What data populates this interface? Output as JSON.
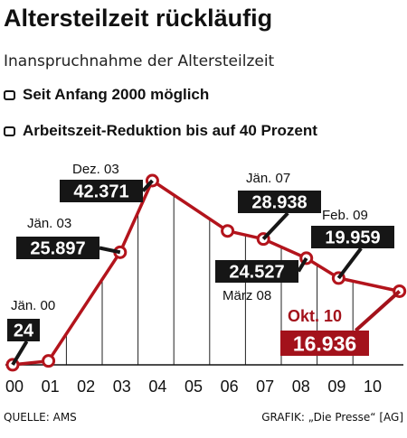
{
  "header": {
    "title": "Altersteilzeit rückläufig",
    "subtitle": "Inanspruchnahme der Altersteilzeit",
    "notes": [
      "Seit Anfang 2000 möglich",
      "Arbeitszeit-Reduktion bis auf 40 Prozent"
    ]
  },
  "footer": {
    "source": "QUELLE: AMS",
    "credit": "GRAFIK: „Die Presse“ [AG]"
  },
  "colors": {
    "line": "#b3141c",
    "label_bg": "#161616",
    "label_accent": "#a3121b",
    "grid": "#222222"
  },
  "chart_data": {
    "type": "line",
    "title": "Altersteilzeit rückläufig",
    "subtitle": "Inanspruchnahme der Altersteilzeit",
    "xlabel": "",
    "ylabel": "",
    "categories": [
      "00",
      "01",
      "02",
      "03",
      "04",
      "05",
      "06",
      "07",
      "08",
      "09",
      "10"
    ],
    "grid": "vertical",
    "series": [
      {
        "points": [
          {
            "x": 2000.0,
            "y": 24
          },
          {
            "x": 2001.0,
            "y": 900
          },
          {
            "x": 2003.0,
            "y": 25897
          },
          {
            "x": 2003.9,
            "y": 42371
          },
          {
            "x": 2006.0,
            "y": 30800
          },
          {
            "x": 2007.0,
            "y": 28938
          },
          {
            "x": 2008.2,
            "y": 24527
          },
          {
            "x": 2009.1,
            "y": 19959
          },
          {
            "x": 2010.8,
            "y": 16936
          }
        ]
      }
    ],
    "annotations": [
      {
        "date": "Jän. 00",
        "value": "24",
        "point": 0,
        "highlight": false
      },
      {
        "date": "Jän. 03",
        "value": "25.897",
        "point": 2,
        "highlight": false
      },
      {
        "date": "Dez. 03",
        "value": "42.371",
        "point": 3,
        "highlight": false
      },
      {
        "date": "Jän. 07",
        "value": "28.938",
        "point": 5,
        "highlight": false
      },
      {
        "date": "März 08",
        "value": "24.527",
        "point": 6,
        "highlight": false
      },
      {
        "date": "Feb. 09",
        "value": "19.959",
        "point": 7,
        "highlight": false
      },
      {
        "date": "Okt. 10",
        "value": "16.936",
        "point": 8,
        "highlight": true
      }
    ],
    "ylim": [
      0,
      42371
    ],
    "xlim": [
      2000,
      2010.8
    ]
  }
}
